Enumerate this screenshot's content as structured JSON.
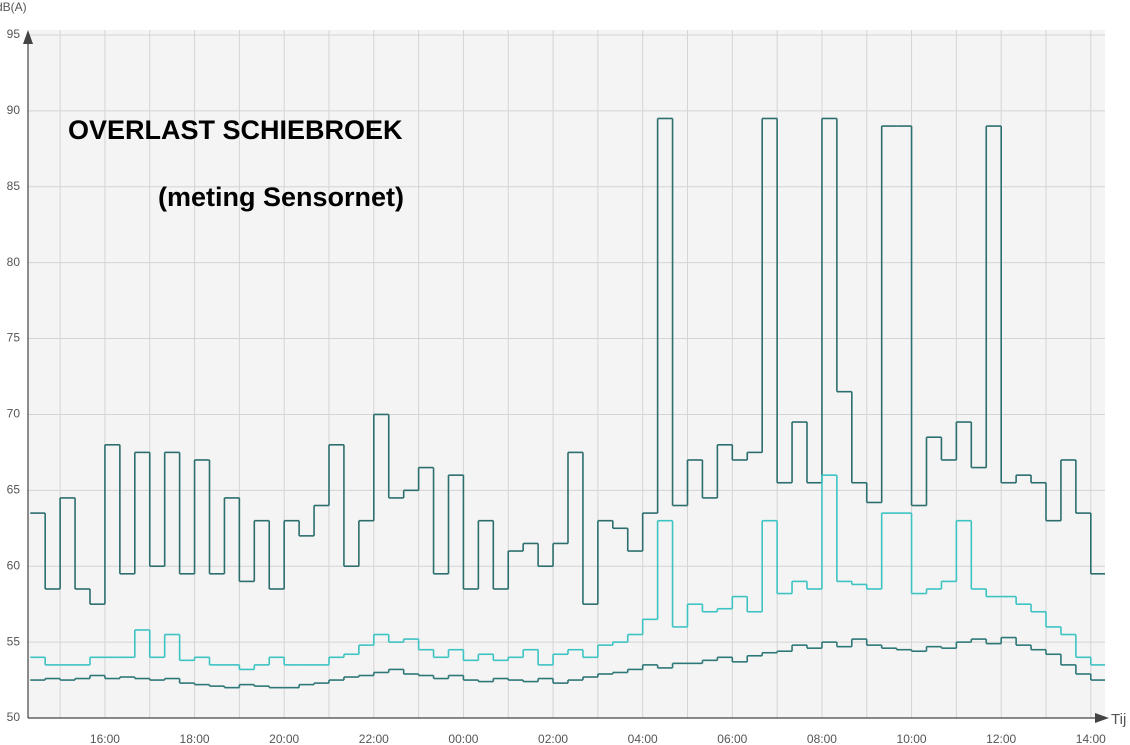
{
  "chart_data": {
    "type": "step",
    "title": "OVERLAST SCHIEBROEK",
    "subtitle": "(meting Sensornet)",
    "y_label": "dB(A)",
    "x_label": "Tij",
    "x": [
      20,
      40,
      60,
      80,
      100,
      120,
      140,
      160,
      180,
      200,
      220,
      240,
      260,
      280,
      300,
      320,
      340,
      360,
      380,
      400,
      420,
      440,
      460,
      480,
      500,
      520,
      540,
      560,
      580,
      600,
      620,
      640,
      660,
      680,
      700,
      720,
      740,
      760,
      780,
      800,
      820,
      840,
      860,
      880,
      900,
      920,
      940,
      960,
      980,
      1000,
      1020,
      1040,
      1060,
      1080,
      1100,
      1120,
      1140,
      1160,
      1180,
      1200,
      1220,
      1240,
      1260,
      1280,
      1300,
      1320,
      1340,
      1360,
      1380,
      1400,
      1420,
      1440
    ],
    "series": [
      {
        "color": "#2c6e6e",
        "values": [
          63.5,
          58.5,
          64.5,
          58.5,
          57.5,
          68,
          59.5,
          67.5,
          60,
          67.5,
          59.5,
          67,
          59.5,
          64.5,
          59,
          63,
          58.5,
          63,
          62,
          64,
          68,
          60,
          63,
          70,
          64.5,
          65,
          66.5,
          59.5,
          66,
          58.5,
          63,
          58.5,
          61,
          61.5,
          60,
          61.5,
          67.5,
          57.5,
          63,
          62.5,
          61,
          63.5,
          89.5,
          64,
          67,
          64.5,
          68,
          67,
          67.5,
          89.5,
          65.5,
          69.5,
          65.5,
          89.5,
          71.5,
          65.5,
          64.2,
          89,
          89,
          64,
          68.5,
          67,
          69.5,
          66.5,
          89,
          65.5,
          66,
          65.5,
          63,
          67,
          63.5,
          59.5
        ]
      },
      {
        "color": "#3ec3c3",
        "values": [
          54,
          53.5,
          53.5,
          53.5,
          54,
          54,
          54,
          55.8,
          54,
          55.5,
          53.8,
          54,
          53.5,
          53.5,
          53.2,
          53.5,
          54,
          53.5,
          53.5,
          53.5,
          54,
          54.2,
          54.8,
          55.5,
          55,
          55.2,
          54.5,
          54,
          54.5,
          53.8,
          54.2,
          53.8,
          54,
          54.5,
          53.5,
          54.2,
          54.5,
          54,
          54.8,
          55,
          55.5,
          56.5,
          63,
          56,
          57.5,
          57,
          57.2,
          58,
          57,
          63,
          58.2,
          59,
          58.5,
          66,
          59,
          58.8,
          58.5,
          63.5,
          63.5,
          58.2,
          58.5,
          59,
          63,
          58.5,
          58,
          58,
          57.5,
          57,
          56,
          55.5,
          54,
          53.5
        ]
      },
      {
        "color": "#2e7777",
        "values": [
          52.5,
          52.6,
          52.5,
          52.6,
          52.8,
          52.6,
          52.7,
          52.6,
          52.5,
          52.6,
          52.3,
          52.2,
          52.1,
          52,
          52.2,
          52.1,
          52,
          52,
          52.2,
          52.3,
          52.5,
          52.7,
          52.8,
          53,
          53.2,
          52.9,
          52.8,
          52.6,
          52.8,
          52.5,
          52.4,
          52.6,
          52.5,
          52.4,
          52.6,
          52.3,
          52.5,
          52.7,
          52.9,
          53,
          53.2,
          53.5,
          53.3,
          53.6,
          53.6,
          53.8,
          54,
          53.7,
          54.1,
          54.3,
          54.4,
          54.8,
          54.6,
          55,
          54.7,
          55.2,
          54.8,
          54.6,
          54.5,
          54.4,
          54.7,
          54.6,
          55,
          55.2,
          54.9,
          55.3,
          54.8,
          54.5,
          54.2,
          53.5,
          52.9,
          52.5
        ]
      }
    ],
    "xlim": [
      17,
      1459
    ],
    "ylim": [
      50,
      95
    ],
    "xticks": [
      {
        "value": 120,
        "label": "16:00"
      },
      {
        "value": 240,
        "label": "18:00"
      },
      {
        "value": 360,
        "label": "20:00"
      },
      {
        "value": 480,
        "label": "22:00"
      },
      {
        "value": 600,
        "label": "00:00"
      },
      {
        "value": 720,
        "label": "02:00"
      },
      {
        "value": 840,
        "label": "04:00"
      },
      {
        "value": 960,
        "label": "06:00"
      },
      {
        "value": 1080,
        "label": "08:00"
      },
      {
        "value": 1200,
        "label": "10:00"
      },
      {
        "value": 1320,
        "label": "12:00"
      },
      {
        "value": 1440,
        "label": "14:00"
      }
    ],
    "xticks_minor": [
      60,
      180,
      300,
      420,
      540,
      660,
      780,
      900,
      1020,
      1140,
      1260,
      1380
    ],
    "yticks": [
      50,
      55,
      60,
      65,
      70,
      75,
      80,
      85,
      90,
      95
    ],
    "grid": true
  }
}
